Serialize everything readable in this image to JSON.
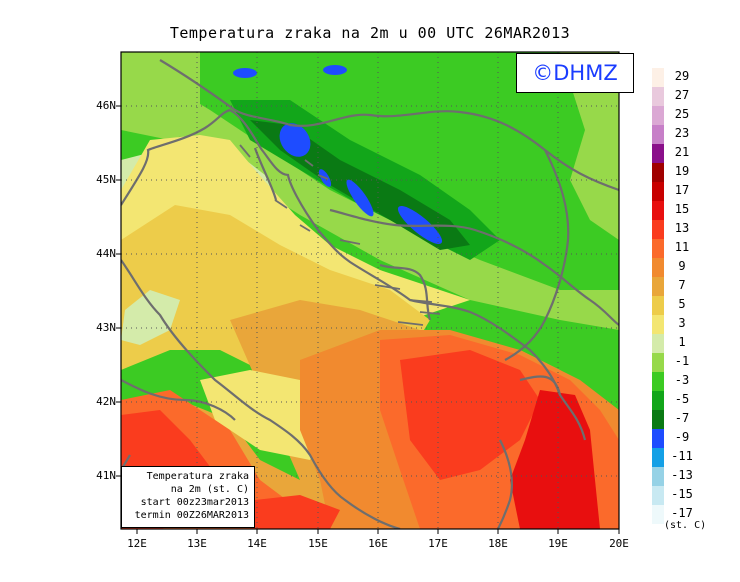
{
  "title": "Temperatura zraka na 2m u 00 UTC 26MAR2013",
  "logo": "©DHMZ",
  "info": {
    "line1": "Temperatura zraka",
    "line2": "na 2m (st. C)",
    "line3": "start 00z23mar2013",
    "line4": "termin 00Z26MAR2013"
  },
  "axes": {
    "lon_labels": [
      "12E",
      "13E",
      "14E",
      "15E",
      "16E",
      "17E",
      "18E",
      "19E",
      "20E"
    ],
    "lat_labels": [
      "46N",
      "45N",
      "44N",
      "43N",
      "42N",
      "41N"
    ]
  },
  "legend": {
    "units": "(st. C)",
    "items": [
      {
        "label": "29",
        "color": "#fdf0e6"
      },
      {
        "label": "27",
        "color": "#e9c9dd"
      },
      {
        "label": "25",
        "color": "#dba8d4"
      },
      {
        "label": "23",
        "color": "#c77fc8"
      },
      {
        "label": "21",
        "color": "#8a0f8a"
      },
      {
        "label": "19",
        "color": "#a00000"
      },
      {
        "label": "17",
        "color": "#c80000"
      },
      {
        "label": "15",
        "color": "#e80f0f"
      },
      {
        "label": "13",
        "color": "#fa3c1e"
      },
      {
        "label": "11",
        "color": "#fb6a2b"
      },
      {
        "label": "9",
        "color": "#f18a2f"
      },
      {
        "label": "7",
        "color": "#e9a63a"
      },
      {
        "label": "5",
        "color": "#edcc4a"
      },
      {
        "label": "3",
        "color": "#f3e672"
      },
      {
        "label": "1",
        "color": "#d4ebaa"
      },
      {
        "label": "-1",
        "color": "#97d94a"
      },
      {
        "label": "-3",
        "color": "#3ccb23"
      },
      {
        "label": "-5",
        "color": "#12a61a"
      },
      {
        "label": "-7",
        "color": "#0a7a14"
      },
      {
        "label": "-9",
        "color": "#1e4cff"
      },
      {
        "label": "-11",
        "color": "#14a0e6"
      },
      {
        "label": "-13",
        "color": "#96d2e6"
      },
      {
        "label": "-15",
        "color": "#c8e9f2"
      },
      {
        "label": "-17",
        "color": "#eef9fb"
      }
    ]
  }
}
